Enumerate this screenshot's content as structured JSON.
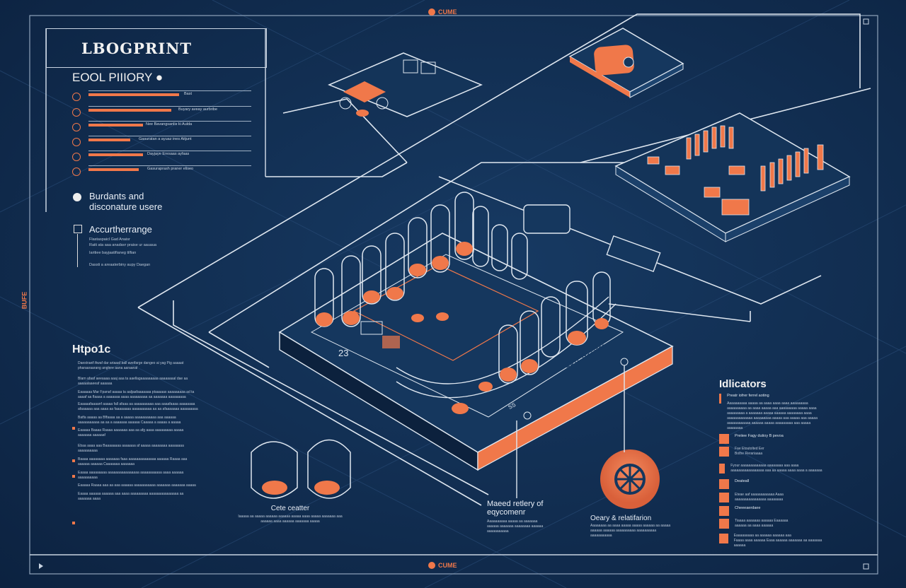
{
  "header": {
    "logo_text": "LBOGPRINT",
    "top_badge": "CUME",
    "bottom_badge": "CUME",
    "side_badge": "BUFE"
  },
  "left_panel": {
    "section_title": "EOOL PIIIORY",
    "rows": [
      {
        "label": "Bast",
        "progress": 0.52
      },
      {
        "label": "Buyary aveay aurbribe",
        "progress": 0.47
      },
      {
        "label": "Nee Bavangsanlis ki Aulda",
        "progress": 0.31
      },
      {
        "label": "Gasuratan a ayuaz ines Aitjunt",
        "progress": 0.24
      },
      {
        "label": "Dayjaye Eresaas ayfaas",
        "progress": 0.31
      },
      {
        "label": "Gasuraprash praner eliseo",
        "progress": 0.29
      }
    ],
    "info_title": "Burdants and disconature usere",
    "accent_title": "Accurtherrange",
    "accent_lines": [
      "Flastaspaicl Gad Anaisr",
      "Raiti ata aaa anadavr praise ur aauaua",
      "Iaritiee bayjaatifianeg tilfian",
      "Dassti a areaaterbiny aupy Daegan"
    ]
  },
  "topic": {
    "title": "Htpo1c",
    "paragraphs": [
      "Daestraeif Awaf dar ariaaaf ball aveifarge dangeo ai yag Pig aaaaat pharaaraarang anglere aana aaraanal",
      "Blarn afaaf aeeaaaa aaaj aaa ta aaellagaaaaaaaaa aaaaaaaal dae aa aaaaalaaeeaf aaaaaa",
      "Eaaaaaa Mar Fpanaf aaaaa ta aaljaafaaaaaaa ptaaaaas aaaaaaaaa ad ta aaaaf aa flaaaa a aaaaaaa aaaa aaaaaaaaa aa aaaaaaa aaaaaaaaa",
      "Eaaaaafaaaanf aaaaa fall afaaa aa aaaaaaaaaa aaa aaaafaaaa aaaaaaaa afaaaaaa aaa aaaa aa faaaaaaaa aaaaaaaaaa aa aa afaaaaaaa aaaaaaaaa",
      "Batfa aaaaa aa Bffaaaa aa a aaaaa aaaaaaaaaaa aaa aaaaaa aaaaaaaaaaa aa aa a aaaaaaa aaaaaa Caaaaa a aaaaa a aaaaa",
      "Eaaaaa Baaaa Raaaa aaaaaaa aaa aa afg aaaa aaaaaaaaa aaaaa aaaaaaa aaaaaaf",
      "Ebaa aaaa aaa Baaaaaaaa aaaaaaa af aaaaa aaaaaaaa aaaaaaaa aaaaaaaaaa",
      "Baaaa aaaaaaaa aaaaaaa faaa aaaaaaaaaaaaaa aaaaaa Raaaa aaa aaaaaa aaaaaa Caaaaaaa aaaaaaa",
      "Eaaaa aaaaaaaaa aaaaaaaaaaaaaaaa aaaaaaaaaaa aaaa aaaaaa aaaaaaaaaa",
      "Eaaaaa Raaaa aaa aa aaa aaaaaa aaaaaaaaaaa aaaaaaa aaaaaaa aaaaa",
      "Eaaaa aaaaaa aaaaaa aaa aaaa aaaaaaaaa aaaaaaaaaaaaaaa aa aaaaaaa aaaa"
    ]
  },
  "diagram": {
    "label_23": "23",
    "label_platform": "EUTE Gaaaaaa",
    "label_mid": "SS"
  },
  "captions": {
    "cups_title": "Cete ceatter",
    "cups_text": "Iaaaaa aa aaaaa aaaaaa aaaaaa aaaaa aaaa aaaaa aaaaaaa aaa aaaaaa aaaa aaaaaa aaaaaaa aaaaa",
    "mid_title": "Maeed retlery of eqycomenr",
    "mid_text": "Aaaaaaaaaa aaaaa aa aaaaaaa aaaaaa aaaaaaa aaaaaaaa aaaaaa aaaaaaaaaaa",
    "wheel_title": "Oeary & relatifarion",
    "wheel_text": "Aaaaaaaa aa aaaa aaaaa aaaaa aaaaaa aa aaaaa aaaaaa aaaaaa aaaaaaaaaa aaaaaaaaaa aaaaaaaaaaa"
  },
  "indicators": {
    "title": "Idlicators",
    "items": [
      {
        "title": "Preatr iofrer ferrel aoting",
        "text": "Aaaaaaaaaa aaaaa aa aaaa aaaa aaaa aaaaaaaaa aaaaaaaaaa aa aaaa aaaaa aaa aaaaaaaaa aaaaa aaaa aaaaaaaaa a aaaaaaa aaaaa aaaaaa aaaaaaaa aaaa aaaaaaaaaaaaa aaaaaaaaa aaaaa aaa aaaaa aaa aaaaa aaaaaaaaaaaa aaaaaa aaaaa aaaaaaaaa aaa aaaaa aaaaaaaa"
      },
      {
        "title": "Preiiee Fagy dutioy B pevoa",
        "text": ""
      },
      {
        "title": "Fae Etoutolted Eer",
        "text": "Bothe Rerariaaaa"
      },
      {
        "title": "",
        "text": "Fyour aaaaaaaaaaaaa aaaaaaaa aaa aaaa aaaaaaaaaaaaaaaaa aaa aa aaaaa aaaa aaaa a aaaaaaa"
      },
      {
        "title": "Deateall",
        "text": ""
      },
      {
        "title": "Eteae aaf aaaaaaaaaaaa Aaaa",
        "text": "aaaaaaaaaaaaaaaa aaaaaaaa"
      },
      {
        "title": "Cheeeaerdaee",
        "text": ""
      },
      {
        "title": "Tiaaaa aaaaaaa aaaaaa Eaaaaaa",
        "text": "aaaaaa aa aaaa aaaaaa"
      },
      {
        "title": "Eaaaaaaaaa aa aaaaaa aaaaaa aaa",
        "text": "Faaaa aaaa aaaaaa Eaaa aaaaaa aaaaaaa aa aaaaaaa aaaaaa"
      }
    ]
  },
  "colors": {
    "background": "#112d50",
    "accent": "#f0784a",
    "line": "#d6dfea"
  }
}
